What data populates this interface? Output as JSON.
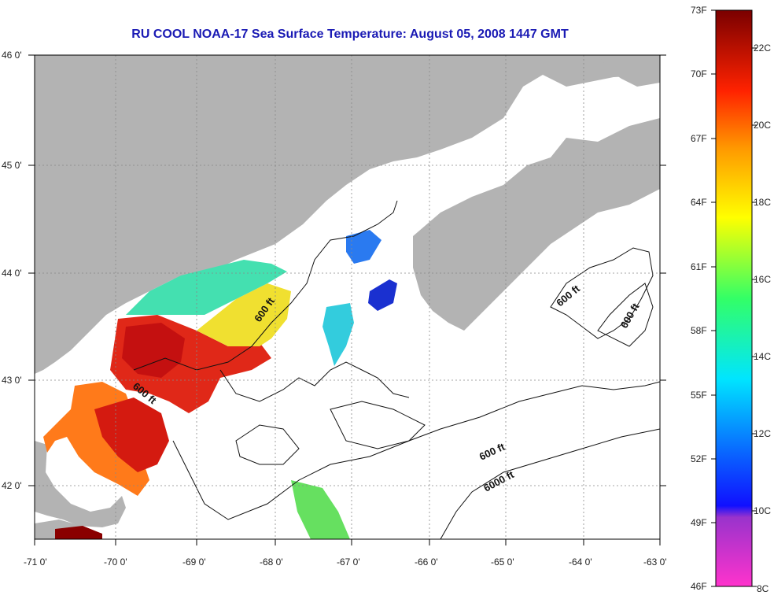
{
  "title": "RU COOL  NOAA-17  Sea Surface Temperature:  August 05, 2008 1447 GMT",
  "longitude_labels": [
    "-71 0'",
    "-70 0'",
    "-69 0'",
    "-68 0'",
    "-67 0'",
    "-66 0'",
    "-65 0'",
    "-64 0'",
    "-63 0'"
  ],
  "latitude_labels": [
    "46 0'",
    "45 0'",
    "44 0'",
    "43 0'",
    "42 0'"
  ],
  "contour_labels": [
    "600 ft",
    "600 ft",
    "600 ft",
    "600 ft",
    "600 ft",
    "6000 ft"
  ],
  "colorbar": {
    "fahrenheit_labels": [
      "73F",
      "70F",
      "67F",
      "64F",
      "61F",
      "58F",
      "55F",
      "52F",
      "49F",
      "46F"
    ],
    "celsius_labels": [
      "22C",
      "20C",
      "18C",
      "16C",
      "14C",
      "12C",
      "10C",
      "8C"
    ]
  },
  "colors": {
    "title": "#1a1ab4",
    "land": "#b3b3b3",
    "ocean": "#ffffff",
    "warm": "#cc1010",
    "cold": "#1a3bd6"
  }
}
